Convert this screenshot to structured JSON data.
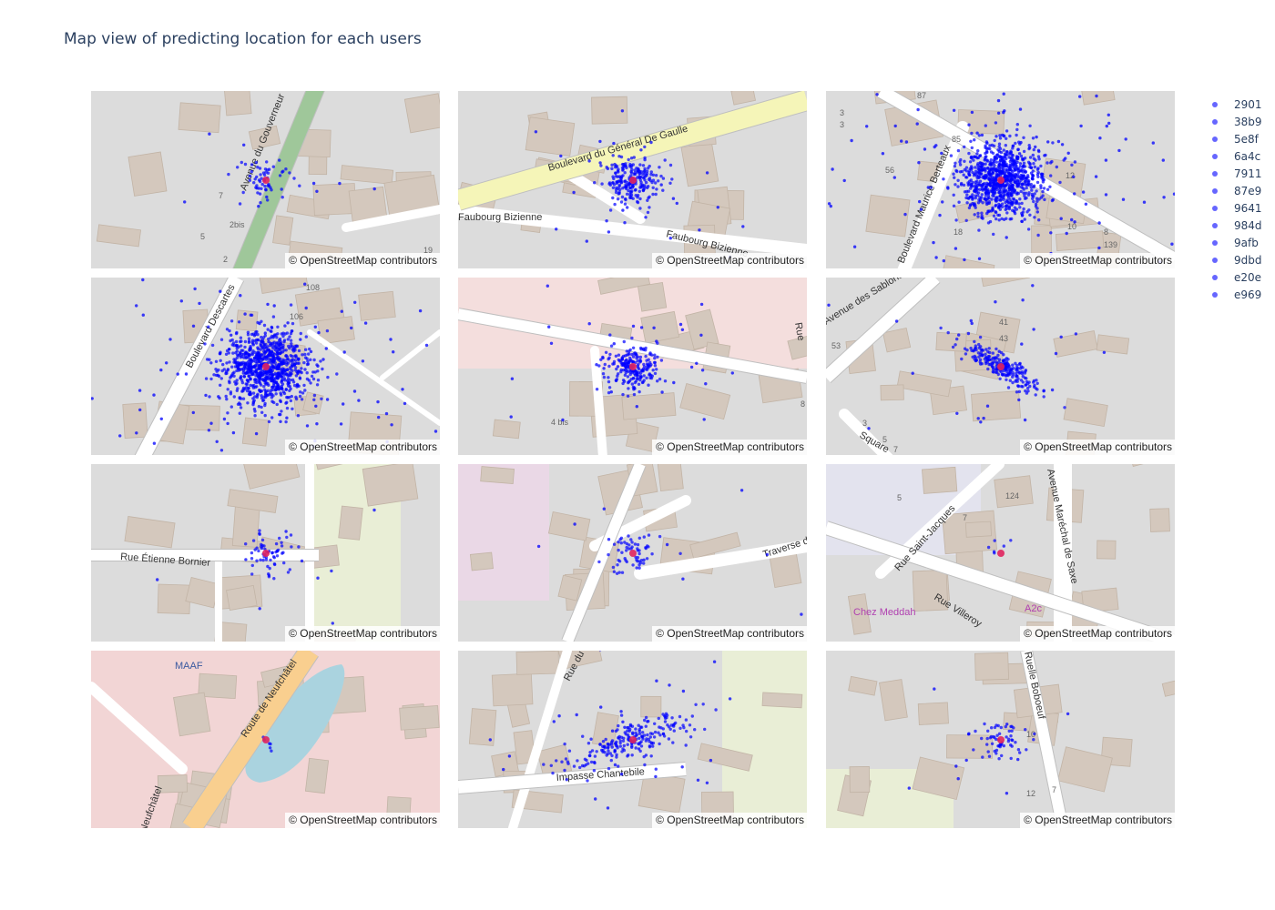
{
  "title": "Map view of predicting location for each users",
  "attribution": "© OpenStreetMap contributors",
  "colors": {
    "points": "#0000ff",
    "center": "#e0245e",
    "map_bg": "#dcdcdc",
    "building": "#d4c8bd",
    "road": "#ffffff",
    "major_road": "#f5f5b8",
    "park": "#e9eed6",
    "pink_zone": "#f2d5d5"
  },
  "chart_data": {
    "type": "scatter",
    "subtype": "scatter-map",
    "legend_position": "right",
    "series": [
      {
        "name": "2901",
        "spread": "small",
        "street_labels": [
          "Avenue du Gouverneur"
        ],
        "house_numbers": [
          "7",
          "5",
          "2",
          "2bis",
          "19"
        ]
      },
      {
        "name": "38b9",
        "spread": "medium",
        "street_labels": [
          "Boulevard du Général De Gaulle",
          "Faubourg Bizienne",
          "Faubourg Bizienne"
        ],
        "house_numbers": []
      },
      {
        "name": "5e8f",
        "spread": "large",
        "street_labels": [
          "Boulevard Maurice Berteaux"
        ],
        "house_numbers": [
          "87",
          "3",
          "3",
          "85",
          "56",
          "18",
          "12",
          "10",
          "8",
          "139"
        ]
      },
      {
        "name": "6a4c",
        "spread": "large",
        "street_labels": [
          "Boulevard Descartes"
        ],
        "house_numbers": [
          "108",
          "106"
        ]
      },
      {
        "name": "7911",
        "spread": "medium",
        "street_labels": [
          "Rue"
        ],
        "house_numbers": [
          "4 bis",
          "8"
        ]
      },
      {
        "name": "87e9",
        "spread": "medium",
        "street_labels": [
          "Avenue des Sablons",
          "Square"
        ],
        "house_numbers": [
          "41",
          "43",
          "53",
          "3",
          "5",
          "7"
        ]
      },
      {
        "name": "9641",
        "spread": "small",
        "street_labels": [
          "Rue Étienne Bornier"
        ],
        "house_numbers": []
      },
      {
        "name": "984d",
        "spread": "small",
        "street_labels": [
          "Traverse d"
        ],
        "house_numbers": []
      },
      {
        "name": "9afb",
        "spread": "single",
        "street_labels": [
          "Rue Saint-Jacques",
          "Avenue Maréchal de Saxe",
          "Rue Villeroy"
        ],
        "house_numbers": [
          "124",
          "5",
          "7"
        ],
        "poi_labels": [
          "Chez Meddah",
          "A2c"
        ]
      },
      {
        "name": "9dbd",
        "spread": "single",
        "street_labels": [
          "Route de Neufchâtel",
          "Neufchâtel"
        ],
        "house_numbers": [],
        "poi_labels": [
          "MAAF"
        ]
      },
      {
        "name": "e20e",
        "spread": "medium",
        "street_labels": [
          "Impasse Chantebile",
          "Rue du"
        ],
        "house_numbers": []
      },
      {
        "name": "e969",
        "spread": "small",
        "street_labels": [
          "Ruelle Boboeuf"
        ],
        "house_numbers": [
          "10",
          "7",
          "12"
        ]
      }
    ]
  }
}
